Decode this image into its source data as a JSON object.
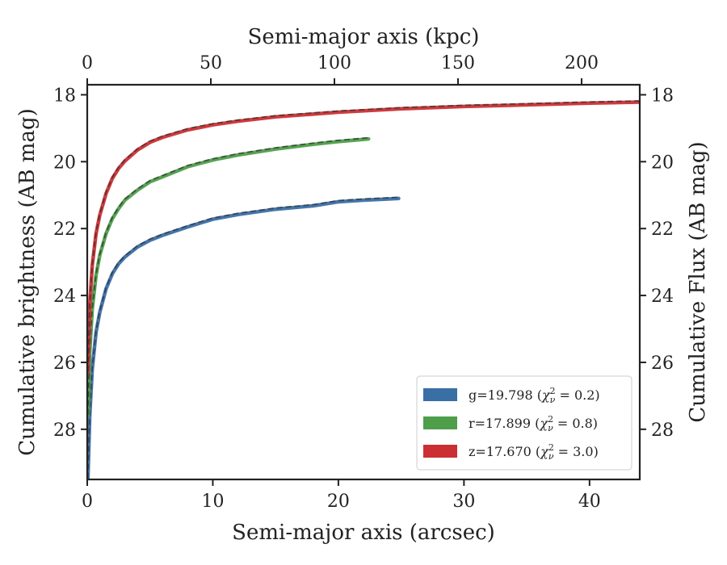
{
  "chart_data": {
    "type": "line",
    "xlabel": "Semi-major axis (arcsec)",
    "xlabel_top": "Semi-major axis (kpc)",
    "ylabel": "Cumulative brightness (AB mag)",
    "ylabel_right": "Cumulative Flux (AB mag)",
    "xlim": [
      0,
      44
    ],
    "ylim": [
      29.5,
      17.7
    ],
    "y_inverted": true,
    "x_ticks": [
      0,
      10,
      20,
      30,
      40
    ],
    "x_ticks_top_kpc": [
      0,
      50,
      100,
      150,
      200
    ],
    "kpc_per_arcsec": 5.08,
    "y_ticks": [
      18,
      20,
      22,
      24,
      26,
      28
    ],
    "grid": false,
    "legend_position": "lower-right",
    "series": [
      {
        "name": "g=19.798 (χ²ν = 0.2)",
        "legend_main": "g=19.798 (",
        "legend_chi": "χ",
        "legend_sup": "2",
        "legend_sub": "ν",
        "legend_eq": " = 0.2)",
        "color": "#3a6fa6",
        "x": [
          0.05,
          0.2,
          0.4,
          0.7,
          1.0,
          1.5,
          2.0,
          2.5,
          3.0,
          4.0,
          5.0,
          6.0,
          8.0,
          10.0,
          12.0,
          15.0,
          18.0,
          20.0,
          22.0,
          24.8
        ],
        "y": [
          29.5,
          27.6,
          26.2,
          25.1,
          24.5,
          23.8,
          23.35,
          23.05,
          22.85,
          22.55,
          22.35,
          22.2,
          21.95,
          21.72,
          21.58,
          21.42,
          21.32,
          21.2,
          21.15,
          21.1
        ]
      },
      {
        "name": "r=17.899 (χ²ν = 0.8)",
        "legend_main": "r=17.899 (",
        "legend_chi": "χ",
        "legend_sup": "2",
        "legend_sub": "ν",
        "legend_eq": " = 0.8)",
        "color": "#4e9e4a",
        "x": [
          0.05,
          0.2,
          0.4,
          0.7,
          1.0,
          1.5,
          2.0,
          2.5,
          3.0,
          4.0,
          5.0,
          6.0,
          8.0,
          10.0,
          12.0,
          15.0,
          18.0,
          20.0,
          22.4
        ],
        "y": [
          27.6,
          25.7,
          24.4,
          23.4,
          22.8,
          22.15,
          21.7,
          21.4,
          21.15,
          20.85,
          20.6,
          20.45,
          20.15,
          19.95,
          19.8,
          19.62,
          19.48,
          19.4,
          19.32
        ]
      },
      {
        "name": "z=17.670 (χ²ν = 3.0)",
        "legend_main": "z=17.670 (",
        "legend_chi": "χ",
        "legend_sup": "2",
        "legend_sub": "ν",
        "legend_eq": " = 3.0)",
        "color": "#cc2f33",
        "x": [
          0.05,
          0.2,
          0.4,
          0.7,
          1.0,
          1.5,
          2.0,
          2.5,
          3.0,
          4.0,
          5.0,
          6.0,
          8.0,
          10.0,
          12.0,
          15.0,
          20.0,
          25.0,
          30.0,
          35.0,
          40.0,
          44.0
        ],
        "y": [
          26.3,
          24.3,
          23.1,
          22.15,
          21.6,
          20.95,
          20.5,
          20.2,
          19.98,
          19.65,
          19.42,
          19.27,
          19.05,
          18.9,
          18.79,
          18.66,
          18.52,
          18.42,
          18.35,
          18.3,
          18.25,
          18.22
        ]
      }
    ]
  }
}
